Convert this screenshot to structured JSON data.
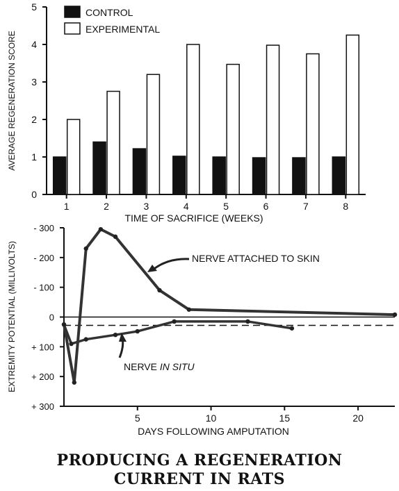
{
  "figure": {
    "title_line1": "PRODUCING A REGENERATION",
    "title_line2": "CURRENT IN RATS"
  },
  "chart_data": [
    {
      "type": "bar",
      "xlabel": "TIME OF SACRIFICE (WEEKS)",
      "ylabel": "AVERAGE REGENERATION SCORE",
      "categories": [
        "1",
        "2",
        "3",
        "4",
        "5",
        "6",
        "7",
        "8"
      ],
      "ylim": [
        0,
        5
      ],
      "yticks": [
        0,
        1,
        2,
        3,
        4,
        5
      ],
      "legend_position": "top-left",
      "series": [
        {
          "name": "CONTROL",
          "color": "#111111",
          "values": [
            1.0,
            1.4,
            1.22,
            1.02,
            1.0,
            0.98,
            0.98,
            1.0
          ]
        },
        {
          "name": "EXPERIMENTAL",
          "color": "#ffffff",
          "values": [
            2.0,
            2.75,
            3.2,
            4.0,
            3.47,
            3.98,
            3.75,
            4.25
          ]
        }
      ]
    },
    {
      "type": "line",
      "xlabel": "DAYS FOLLOWING AMPUTATION",
      "ylabel": "EXTREMITY POTENTIAL (MILLIVOLTS)",
      "xlim": [
        0,
        22.5
      ],
      "xticks": [
        5,
        10,
        15,
        20
      ],
      "ylim": [
        300,
        -300
      ],
      "yticks": [
        -300,
        -200,
        -100,
        0,
        100,
        200,
        300
      ],
      "ytick_labels": [
        "- 300",
        "- 200",
        "- 100",
        "0",
        "+ 100",
        "+ 200",
        "+ 300"
      ],
      "reference_dashed_y": 28,
      "series": [
        {
          "name": "NERVE ATTACHED TO SKIN",
          "label": "NERVE ATTACHED TO SKIN",
          "x": [
            0,
            0.7,
            1.5,
            2.5,
            3.5,
            6.5,
            8.5,
            22.5
          ],
          "y": [
            25,
            220,
            -230,
            -295,
            -270,
            -90,
            -25,
            -8
          ]
        },
        {
          "name": "NERVE IN SITU",
          "label_prefix": "NERVE ",
          "label_italic": "IN SITU",
          "x": [
            0,
            0.5,
            1.5,
            3.5,
            5,
            7.5,
            12.5,
            15.5
          ],
          "y": [
            25,
            90,
            75,
            60,
            48,
            15,
            15,
            38
          ]
        }
      ]
    }
  ]
}
